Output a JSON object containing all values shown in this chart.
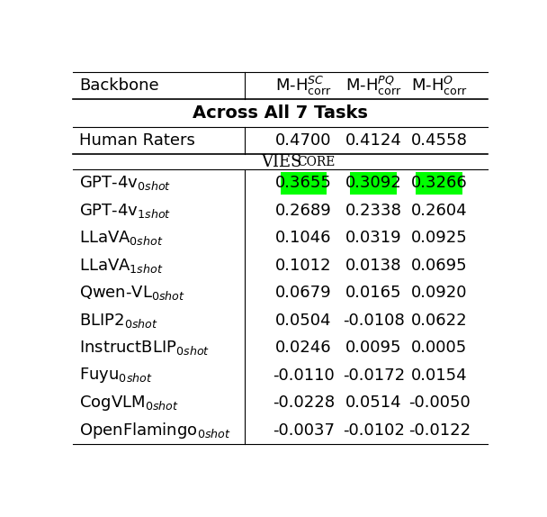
{
  "col_header_labels": [
    "Backbone",
    "M-H$^{SC}_{\\mathrm{corr}}$",
    "M-H$^{PQ}_{\\mathrm{corr}}$",
    "M-H$^{O}_{\\mathrm{corr}}$"
  ],
  "section_label": "Across All 7 Tasks",
  "human_row": [
    "Human Raters",
    "0.4700",
    "0.4124",
    "0.4558"
  ],
  "rows": [
    [
      "GPT-4v$_{0shot}$",
      "0.3655",
      "0.3092",
      "0.3266"
    ],
    [
      "GPT-4v$_{1shot}$",
      "0.2689",
      "0.2338",
      "0.2604"
    ],
    [
      "LLaVA$_{0shot}$",
      "0.1046",
      "0.0319",
      "0.0925"
    ],
    [
      "LLaVA$_{1shot}$",
      "0.1012",
      "0.0138",
      "0.0695"
    ],
    [
      "Qwen-VL$_{0shot}$",
      "0.0679",
      "0.0165",
      "0.0920"
    ],
    [
      "BLIP2$_{0shot}$",
      "0.0504",
      "-0.0108",
      "0.0622"
    ],
    [
      "InstructBLIP$_{0shot}$",
      "0.0246",
      "0.0095",
      "0.0005"
    ],
    [
      "Fuyu$_{0shot}$",
      "-0.0110",
      "-0.0172",
      "0.0154"
    ],
    [
      "CogVLM$_{0shot}$",
      "-0.0228",
      "0.0514",
      "-0.0050"
    ],
    [
      "OpenFlamingo$_{0shot}$",
      "-0.0037",
      "-0.0102",
      "-0.0122"
    ]
  ],
  "highlight_row": 0,
  "highlight_cols": [
    1,
    2,
    3
  ],
  "highlight_color": "#00FF00",
  "bg_color": "#FFFFFF",
  "text_color": "#000000",
  "line_color": "#000000",
  "figsize": [
    6.08,
    5.74
  ],
  "dpi": 100
}
